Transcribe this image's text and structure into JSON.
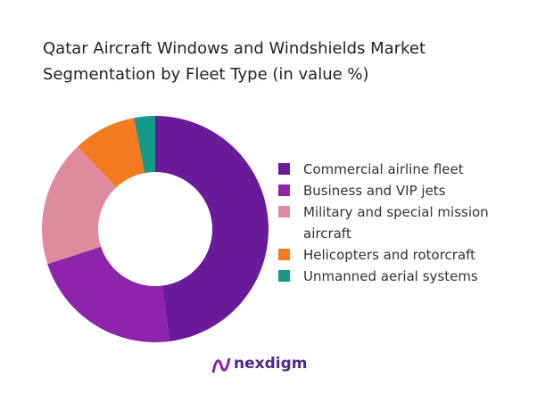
{
  "chart_data": {
    "type": "donut",
    "title": "Qatar Aircraft Windows and Windshields Market Segmentation by Fleet Type (in value %)",
    "categories": [
      "Commercial airline fleet",
      "Business and VIP jets",
      "Military and special mission aircraft",
      "Helicopters and rotorcraft",
      "Unmanned aerial systems"
    ],
    "values": [
      48,
      22,
      18,
      9,
      3
    ],
    "colors": [
      "#6a1b9a",
      "#8e24aa",
      "#e08a9e",
      "#f47b20",
      "#17998a"
    ],
    "legend": "right"
  },
  "brand": "nexdigm"
}
